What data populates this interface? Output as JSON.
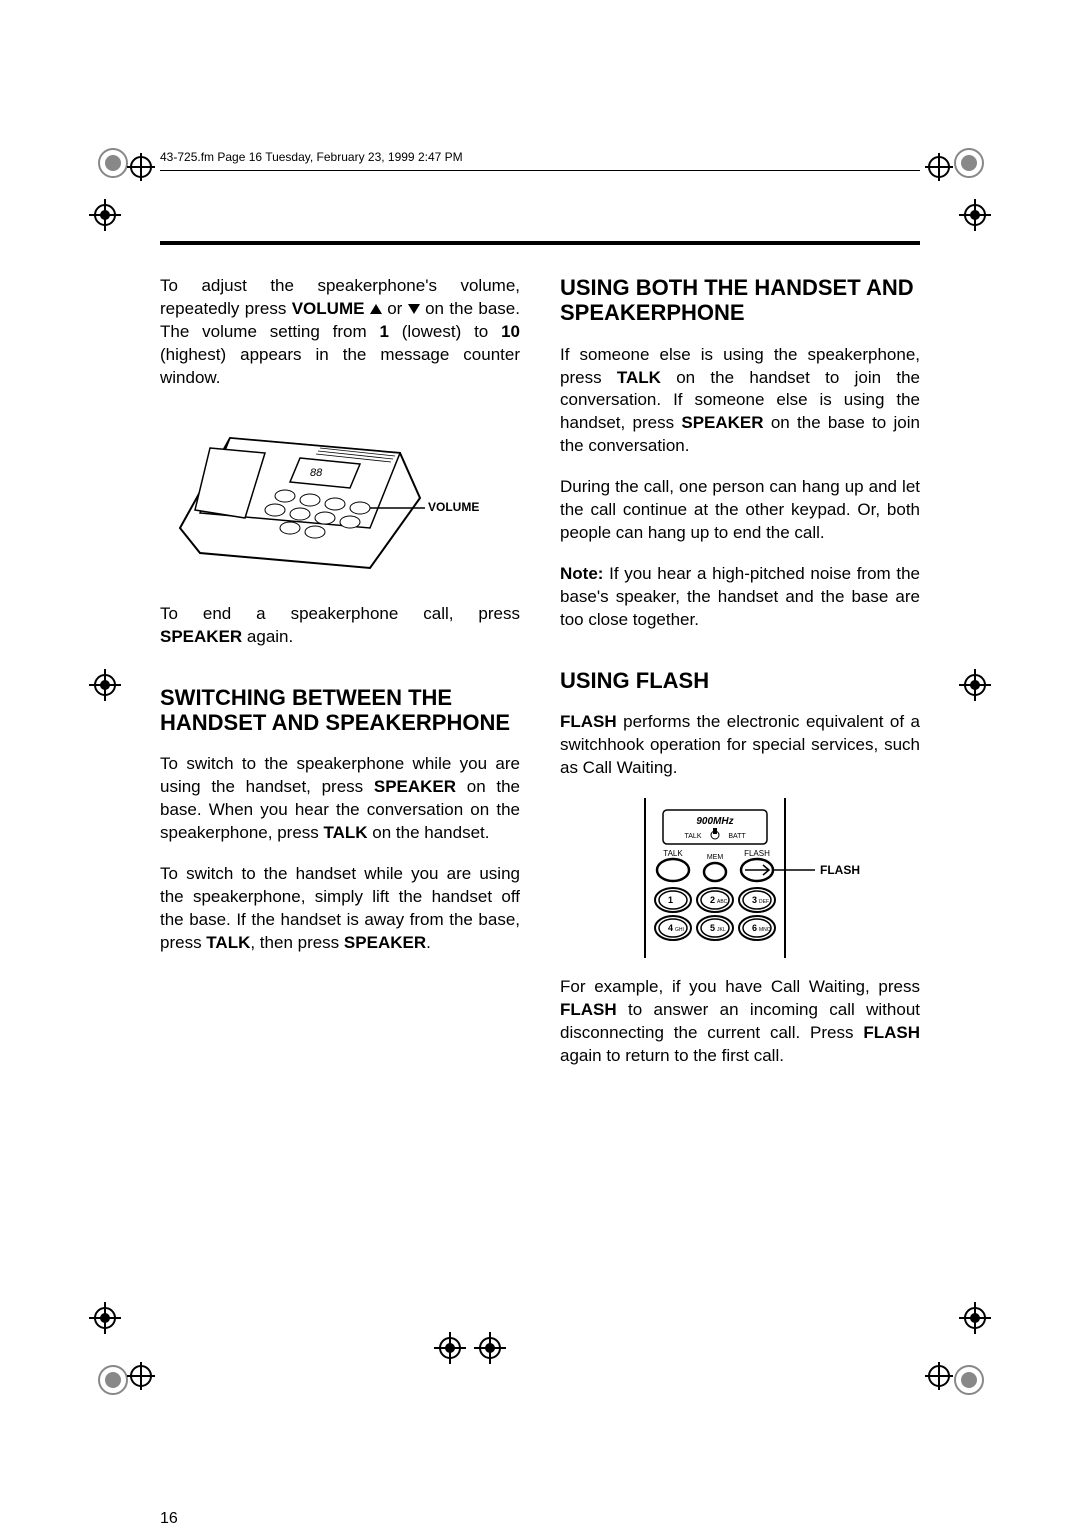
{
  "header": "43-725.fm  Page 16  Tuesday, February 23, 1999  2:47 PM",
  "page_number": "16",
  "left_col": {
    "p1_a": "To adjust the speakerphone's volume, repeatedly press ",
    "p1_b": "VOLUME",
    "p1_c": " or ",
    "p1_d": " on the base. The volume setting from ",
    "p1_e": "1",
    "p1_f": " (lowest) to ",
    "p1_g": "10",
    "p1_h": " (highest) appears in the message counter window.",
    "fig1_label": "VOLUME",
    "p2_a": "To end a speakerphone call, press ",
    "p2_b": "SPEAKER",
    "p2_c": " again.",
    "h1": "SWITCHING BETWEEN THE HANDSET AND SPEAKERPHONE",
    "p3_a": "To switch to the speakerphone while you are using the handset, press ",
    "p3_b": "SPEAKER",
    "p3_c": " on the base. When you hear the conversation on the speakerphone, press ",
    "p3_d": "TALK",
    "p3_e": " on the handset.",
    "p4_a": "To switch to the handset while you are using the speakerphone, simply lift the handset off the base. If the handset is away from the base, press ",
    "p4_b": "TALK",
    "p4_c": ", then press ",
    "p4_d": "SPEAKER",
    "p4_e": "."
  },
  "right_col": {
    "h1": "USING BOTH THE HANDSET AND SPEAKERPHONE",
    "p1_a": "If someone else is using the speakerphone, press ",
    "p1_b": "TALK",
    "p1_c": " on the handset to join the conversation. If someone else is using the handset, press ",
    "p1_d": "SPEAKER",
    "p1_e": " on the base to join the conversation.",
    "p2": "During the call, one person can hang up and let the call continue at the other keypad. Or, both people can hang up to end the call.",
    "p3_a": "Note:",
    "p3_b": " If you hear a high-pitched noise from the base's speaker, the handset and the base are too close together.",
    "h2": "USING FLASH",
    "p4_a": "FLASH",
    "p4_b": " performs the electronic equivalent of a switchhook operation for special services, such as Call Waiting.",
    "fig2_label": "FLASH",
    "p5_a": "For example, if you have Call Waiting, press ",
    "p5_b": "FLASH",
    "p5_c": " to answer an incoming call without disconnecting the current call. Press ",
    "p5_d": "FLASH",
    "p5_e": " again to return to the first call."
  },
  "handset": {
    "title": "900MHz",
    "talk_label": "TALK",
    "batt_label": "BATT",
    "btn_talk": "TALK",
    "btn_mem": "MEM",
    "btn_flash": "FLASH",
    "keys": [
      {
        "n": "1",
        "l": ""
      },
      {
        "n": "2",
        "l": "ABC"
      },
      {
        "n": "3",
        "l": "DEF"
      },
      {
        "n": "4",
        "l": "GHI"
      },
      {
        "n": "5",
        "l": "JKL"
      },
      {
        "n": "6",
        "l": "MNO"
      }
    ]
  },
  "style": {
    "text_color": "#000000",
    "bg_color": "#ffffff",
    "body_fontsize": 17,
    "heading_fontsize": 22,
    "header_fontsize": 12
  }
}
